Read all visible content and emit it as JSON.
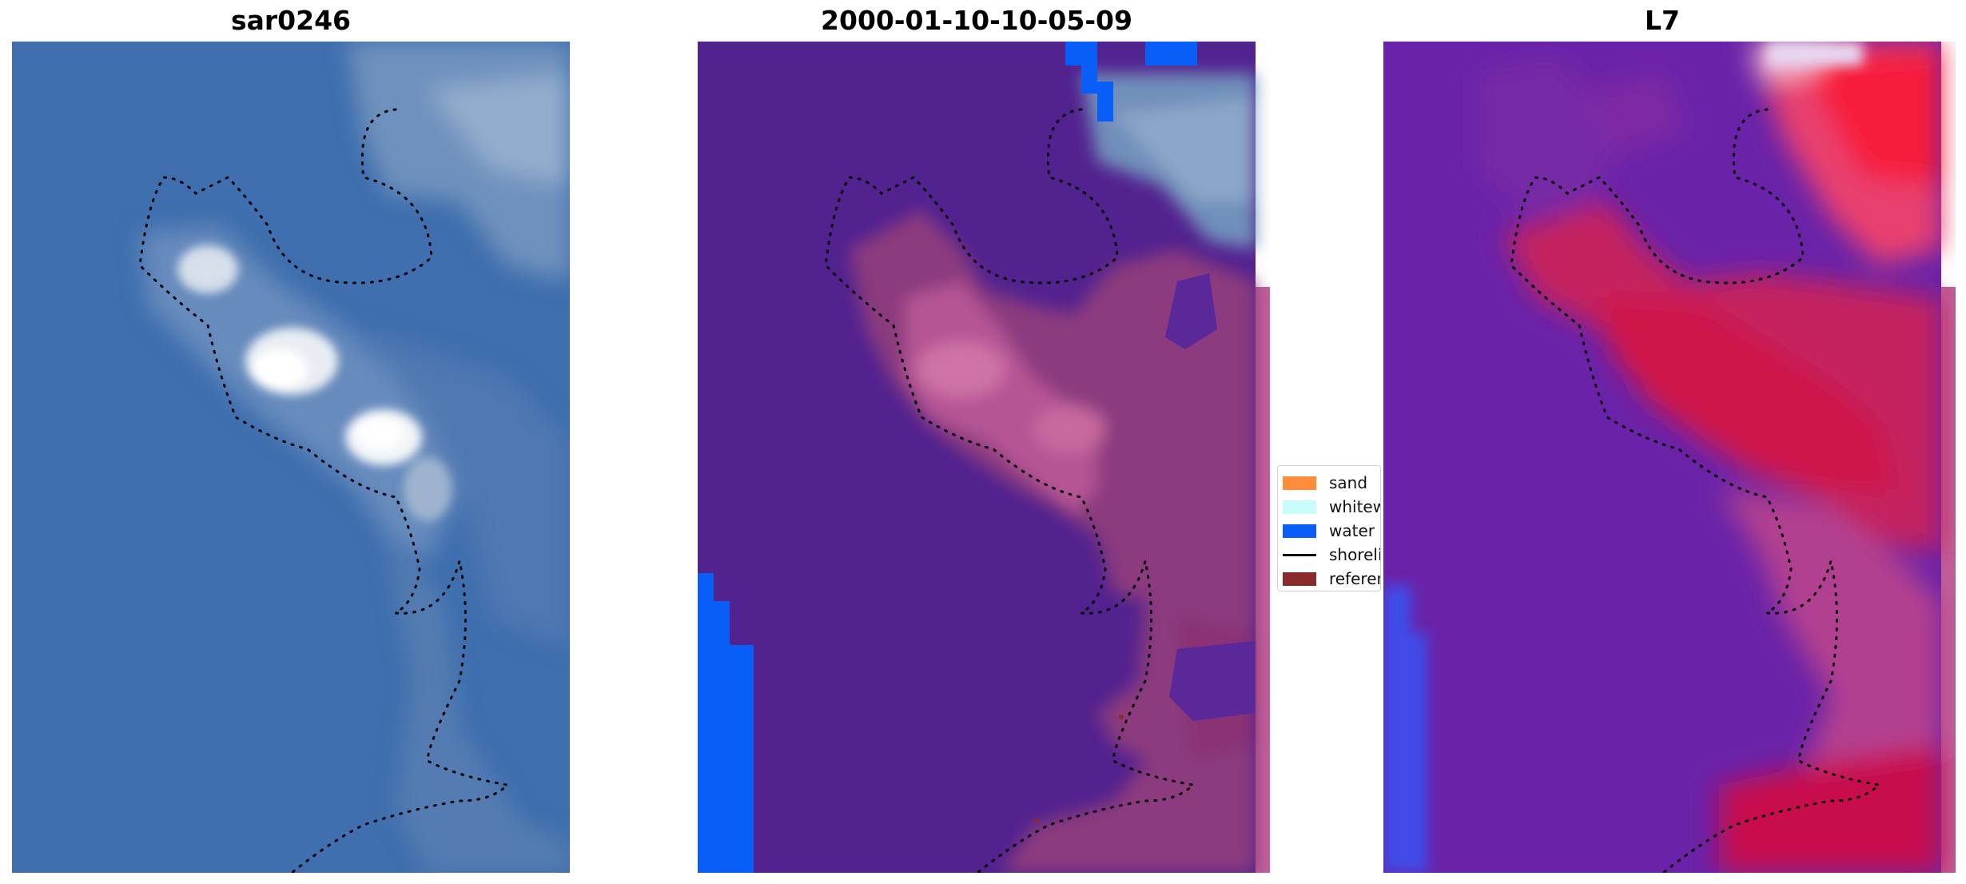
{
  "panels": [
    {
      "title": "sar0246"
    },
    {
      "title": "2000-01-10-10-05-09"
    },
    {
      "title": "L7"
    }
  ],
  "legend": {
    "items": [
      {
        "label": "sand",
        "color": "#ff8c3a",
        "kind": "patch"
      },
      {
        "label": "whitewater",
        "color": "#c8fcfa",
        "kind": "patch"
      },
      {
        "label": "water",
        "color": "#0a5ef8",
        "kind": "patch"
      },
      {
        "label": "shoreline",
        "color": "#000000",
        "kind": "line"
      },
      {
        "label": "reference",
        "color": "#8b2a2a",
        "kind": "patch"
      }
    ]
  },
  "colors": {
    "ocean_blue": "#3f6fae",
    "classified_purple": "#52228f",
    "water_class": "#0a5ef8",
    "mndwi_purple": "#6a23a8",
    "mndwi_red": "#e0103a"
  }
}
